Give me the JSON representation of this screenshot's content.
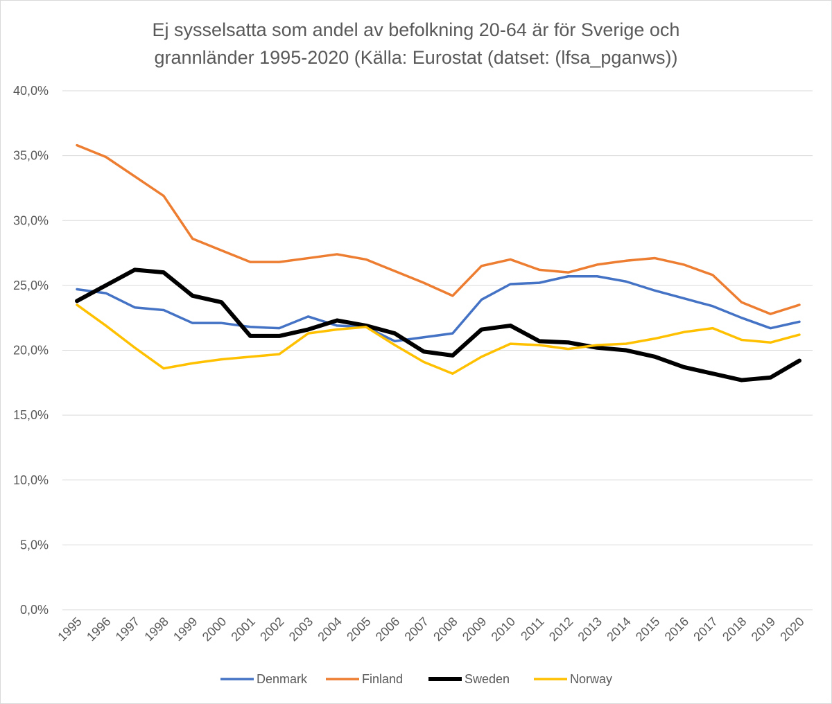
{
  "chart_data": {
    "type": "line",
    "title_lines": [
      "Ej sysselsatta som andel av befolkning 20-64 är för Sverige och",
      "grannländer 1995-2020 (Källa: Eurostat (datset: (lfsa_pganws))"
    ],
    "xlabel": "",
    "ylabel": "",
    "ylim": [
      0,
      40
    ],
    "y_ticks": [
      "0,0%",
      "5,0%",
      "10,0%",
      "15,0%",
      "20,0%",
      "25,0%",
      "30,0%",
      "35,0%",
      "40,0%"
    ],
    "grid": true,
    "legend_position": "bottom",
    "x": [
      "1995",
      "1996",
      "1997",
      "1998",
      "1999",
      "2000",
      "2001",
      "2002",
      "2003",
      "2004",
      "2005",
      "2006",
      "2007",
      "2008",
      "2009",
      "2010",
      "2011",
      "2012",
      "2013",
      "2014",
      "2015",
      "2016",
      "2017",
      "2018",
      "2019",
      "2020"
    ],
    "series": [
      {
        "name": "Denmark",
        "color": "#4472C4",
        "values": [
          24.7,
          24.4,
          23.3,
          23.1,
          22.1,
          22.1,
          21.8,
          21.7,
          22.6,
          21.9,
          21.8,
          20.7,
          21.0,
          21.3,
          23.9,
          25.1,
          25.2,
          25.7,
          25.7,
          25.3,
          24.6,
          24.0,
          23.4,
          22.5,
          21.7,
          22.2
        ]
      },
      {
        "name": "Finland",
        "color": "#ED7D31",
        "values": [
          35.8,
          34.9,
          33.4,
          31.9,
          28.6,
          27.7,
          26.8,
          26.8,
          27.1,
          27.4,
          27.0,
          26.1,
          25.2,
          24.2,
          26.5,
          27.0,
          26.2,
          26.0,
          26.6,
          26.9,
          27.1,
          26.6,
          25.8,
          23.7,
          22.8,
          23.5
        ]
      },
      {
        "name": "Sweden",
        "color": "#000000",
        "values": [
          23.8,
          25.0,
          26.2,
          26.0,
          24.2,
          23.7,
          21.1,
          21.1,
          21.6,
          22.3,
          21.9,
          21.3,
          19.9,
          19.6,
          21.6,
          21.9,
          20.7,
          20.6,
          20.2,
          20.0,
          19.5,
          18.7,
          18.2,
          17.7,
          17.9,
          19.2
        ]
      },
      {
        "name": "Norway",
        "color": "#FFC000",
        "values": [
          23.5,
          21.9,
          20.2,
          18.6,
          19.0,
          19.3,
          19.5,
          19.7,
          21.3,
          21.6,
          21.8,
          20.4,
          19.1,
          18.2,
          19.5,
          20.5,
          20.4,
          20.1,
          20.4,
          20.5,
          20.9,
          21.4,
          21.7,
          20.8,
          20.6,
          21.2
        ]
      }
    ]
  }
}
